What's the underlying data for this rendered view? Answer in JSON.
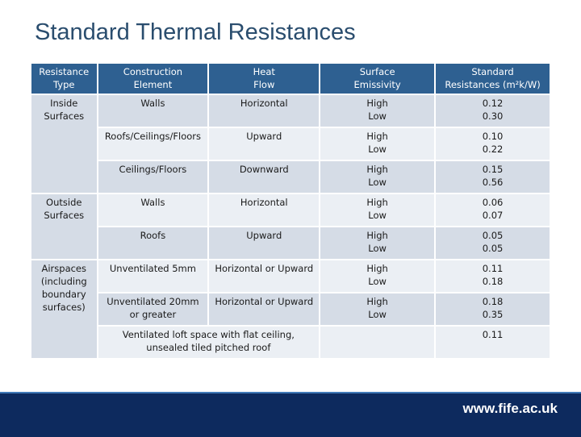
{
  "title": "Standard Thermal Resistances",
  "table": {
    "headers": [
      "Resistance\nType",
      "Construction\nElement",
      "Heat\nFlow",
      "Surface\nEmissivity",
      "Standard\nResistances (m²k/W)"
    ],
    "type_groups": [
      {
        "label": "Inside\nSurfaces"
      },
      {
        "label": "Outside\nSurfaces"
      },
      {
        "label": "Airspaces\n(including\nboundary\nsurfaces)"
      }
    ],
    "rows": [
      {
        "element": "Walls",
        "flow": "Horizontal",
        "emissivity": "High\nLow",
        "resistance": "0.12\n0.30"
      },
      {
        "element": "Roofs/Ceilings/Floors",
        "flow": "Upward",
        "emissivity": "High\nLow",
        "resistance": "0.10\n0.22"
      },
      {
        "element": "Ceilings/Floors",
        "flow": "Downward",
        "emissivity": "High\nLow",
        "resistance": "0.15\n0.56"
      },
      {
        "element": "Walls",
        "flow": "Horizontal",
        "emissivity": "High\nLow",
        "resistance": "0.06\n0.07"
      },
      {
        "element": "Roofs",
        "flow": "Upward",
        "emissivity": "High\nLow",
        "resistance": "0.05\n0.05"
      },
      {
        "element": "Unventilated 5mm",
        "flow": "Horizontal or Upward",
        "emissivity": "High\nLow",
        "resistance": "0.11\n0.18"
      },
      {
        "element": "Unventilated 20mm\nor greater",
        "flow": "Horizontal or Upward",
        "emissivity": "High\nLow",
        "resistance": "0.18\n0.35"
      }
    ],
    "last_row": {
      "element": "Ventilated loft space with flat ceiling,\nunsealed tiled pitched roof",
      "emissivity": "",
      "resistance": "0.11"
    }
  },
  "footer": {
    "url": "www.fife.ac.uk"
  }
}
